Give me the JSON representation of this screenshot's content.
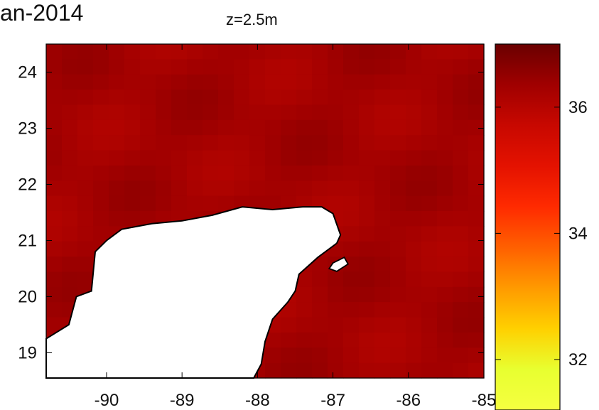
{
  "header": {
    "date_fragment": "an-2014",
    "depth_label": "z=2.5m"
  },
  "chart_data": {
    "type": "heatmap",
    "title": "an-2014",
    "subtitle": "z=2.5m",
    "xlabel": "",
    "ylabel": "",
    "xlim": [
      -90.8,
      -85
    ],
    "ylim": [
      18.55,
      24.5
    ],
    "xticks": [
      -90,
      -89,
      -88,
      -87,
      -86,
      -85
    ],
    "yticks": [
      19,
      20,
      21,
      22,
      23,
      24
    ],
    "grid": false,
    "land_color": "#ffffff",
    "coastline_color": "#000000",
    "colormap": {
      "name": "hot",
      "stops": [
        "#f5ff40",
        "#e8ff30",
        "#ffd000",
        "#ff9a00",
        "#ff6000",
        "#ff2a00",
        "#e41200",
        "#c80800",
        "#a00000",
        "#6a0000"
      ]
    },
    "colorbar": {
      "range": [
        31.2,
        37.0
      ],
      "ticks": [
        32,
        34,
        36
      ]
    },
    "field": {
      "typical_value": 36.3,
      "range_shown": [
        36.0,
        36.6
      ]
    },
    "coastline": [
      [
        -90.8,
        19.25
      ],
      [
        -90.5,
        19.5
      ],
      [
        -90.4,
        20.0
      ],
      [
        -90.2,
        20.1
      ],
      [
        -90.15,
        20.8
      ],
      [
        -90.0,
        21.0
      ],
      [
        -89.8,
        21.2
      ],
      [
        -89.4,
        21.3
      ],
      [
        -89.0,
        21.35
      ],
      [
        -88.6,
        21.45
      ],
      [
        -88.2,
        21.6
      ],
      [
        -87.8,
        21.55
      ],
      [
        -87.4,
        21.6
      ],
      [
        -87.15,
        21.6
      ],
      [
        -87.0,
        21.48
      ],
      [
        -86.9,
        21.1
      ],
      [
        -86.95,
        20.95
      ],
      [
        -87.2,
        20.7
      ],
      [
        -87.45,
        20.4
      ],
      [
        -87.5,
        20.1
      ],
      [
        -87.6,
        19.9
      ],
      [
        -87.8,
        19.6
      ],
      [
        -87.9,
        19.2
      ],
      [
        -87.95,
        18.8
      ],
      [
        -88.05,
        18.55
      ]
    ],
    "island": [
      [
        -87.05,
        20.5
      ],
      [
        -86.95,
        20.45
      ],
      [
        -86.8,
        20.58
      ],
      [
        -86.85,
        20.7
      ],
      [
        -87.0,
        20.6
      ]
    ]
  }
}
